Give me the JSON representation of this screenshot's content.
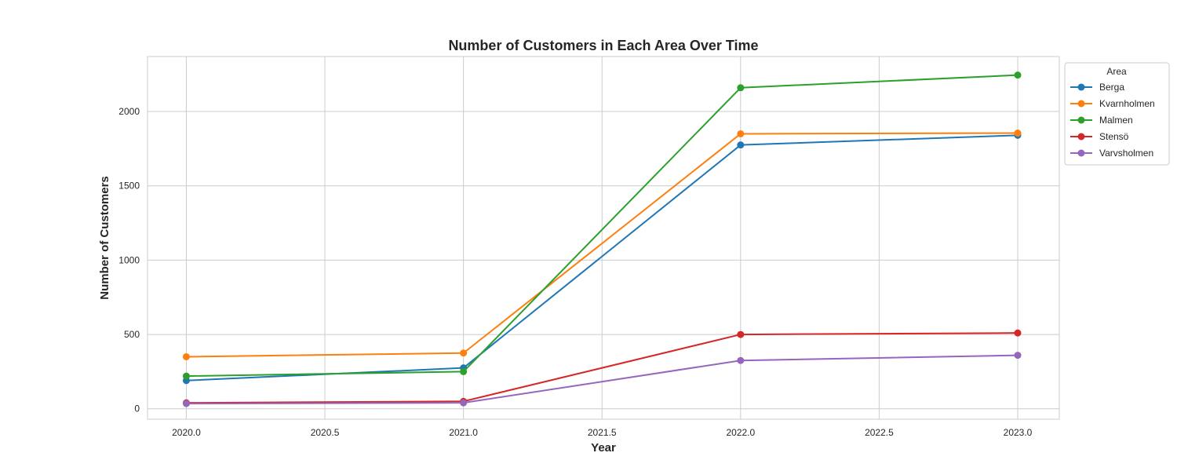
{
  "chart_data": {
    "type": "line",
    "title": "Number of Customers in Each Area Over Time",
    "xlabel": "Year",
    "ylabel": "Number of Customers",
    "x": [
      2020,
      2021,
      2022,
      2023
    ],
    "xlim": [
      2019.86,
      2023.15
    ],
    "ylim": [
      -70,
      2370
    ],
    "xticks": [
      2020.0,
      2020.5,
      2021.0,
      2021.5,
      2022.0,
      2022.5,
      2023.0
    ],
    "xtick_labels": [
      "2020.0",
      "2020.5",
      "2021.0",
      "2021.5",
      "2022.0",
      "2022.5",
      "2023.0"
    ],
    "yticks": [
      0,
      500,
      1000,
      1500,
      2000
    ],
    "ytick_labels": [
      "0",
      "500",
      "1000",
      "1500",
      "2000"
    ],
    "grid": true,
    "legend": {
      "title": "Area",
      "placement": "upper-right-outside"
    },
    "series": [
      {
        "name": "Berga",
        "color": "#1f77b4",
        "values": [
          190,
          275,
          1775,
          1840
        ]
      },
      {
        "name": "Kvarnholmen",
        "color": "#ff7f0e",
        "values": [
          350,
          375,
          1850,
          1855
        ]
      },
      {
        "name": "Malmen",
        "color": "#2ca02c",
        "values": [
          220,
          250,
          2160,
          2245
        ]
      },
      {
        "name": "Stensö",
        "color": "#d62728",
        "values": [
          40,
          50,
          500,
          510
        ]
      },
      {
        "name": "Varvsholmen",
        "color": "#9467bd",
        "values": [
          35,
          40,
          325,
          360
        ]
      }
    ]
  }
}
